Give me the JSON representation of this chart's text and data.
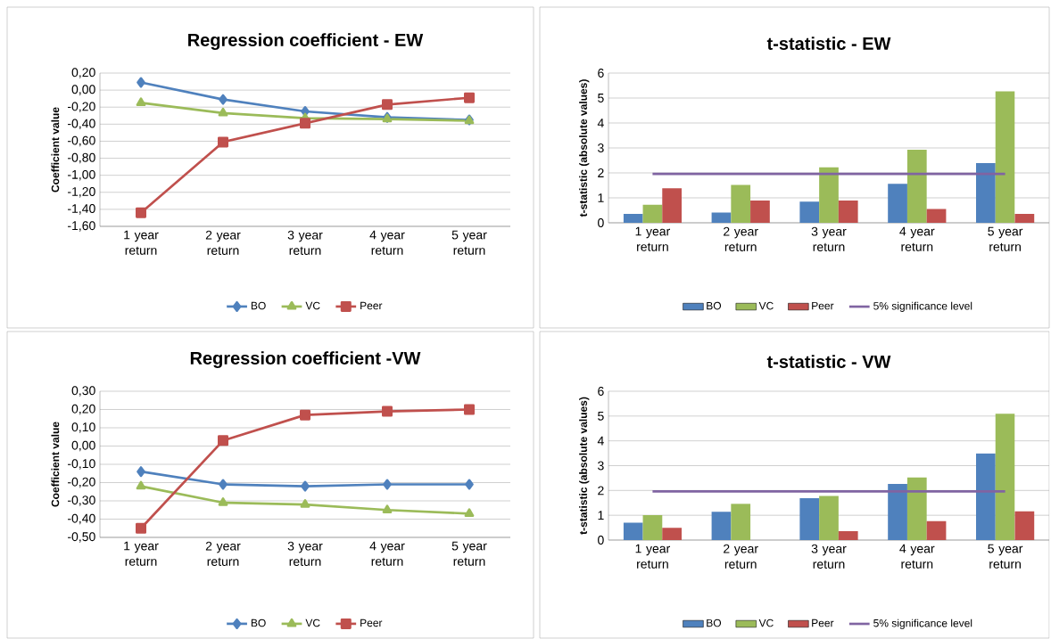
{
  "chart_data": [
    {
      "type": "line",
      "title": "Regression coefficient - EW",
      "ylabel": "Coefficient value",
      "categories": [
        "1 year return",
        "2 year return",
        "3 year return",
        "4 year return",
        "5 year return"
      ],
      "series": [
        {
          "name": "BO",
          "color": "#4f81bd",
          "marker": "diamond",
          "values": [
            0.09,
            -0.11,
            -0.25,
            -0.32,
            -0.35
          ]
        },
        {
          "name": "VC",
          "color": "#9bbb59",
          "marker": "triangle",
          "values": [
            -0.15,
            -0.27,
            -0.33,
            -0.34,
            -0.36
          ]
        },
        {
          "name": "Peer",
          "color": "#c0504d",
          "marker": "square",
          "values": [
            -1.44,
            -0.61,
            -0.39,
            -0.17,
            -0.09
          ]
        }
      ],
      "ylim": [
        -1.6,
        0.2
      ],
      "yticks": [
        {
          "value": -1.6,
          "label": "-1,60"
        },
        {
          "value": -1.4,
          "label": "-1,40"
        },
        {
          "value": -1.2,
          "label": "-1,20"
        },
        {
          "value": -1.0,
          "label": "-1,00"
        },
        {
          "value": -0.8,
          "label": "-0,80"
        },
        {
          "value": -0.6,
          "label": "-0,60"
        },
        {
          "value": -0.4,
          "label": "-0,40"
        },
        {
          "value": -0.2,
          "label": "-0,20"
        },
        {
          "value": 0,
          "label": "0,00"
        },
        {
          "value": 0.2,
          "label": "0,20"
        }
      ],
      "grid": "y",
      "legend": "bottom"
    },
    {
      "type": "bar",
      "title": "t-statistic - EW",
      "ylabel": "t-statistic (absolute values)",
      "categories": [
        "1 year return",
        "2 year return",
        "3 year return",
        "4 year return",
        "5 year return"
      ],
      "series": [
        {
          "name": "BO",
          "color": "#4f81bd",
          "values": [
            0.36,
            0.41,
            0.85,
            1.56,
            2.39
          ]
        },
        {
          "name": "VC",
          "color": "#9bbb59",
          "values": [
            0.72,
            1.52,
            2.22,
            2.93,
            5.27
          ]
        },
        {
          "name": "Peer",
          "color": "#c0504d",
          "values": [
            1.38,
            0.89,
            0.89,
            0.55,
            0.36
          ]
        },
        {
          "name": "5% significance level",
          "type": "line",
          "color": "#8064a2",
          "values": [
            1.96,
            1.96,
            1.96,
            1.96,
            1.96
          ]
        }
      ],
      "ylim": [
        0,
        6
      ],
      "yticks": [
        0,
        1,
        2,
        3,
        4,
        5,
        6
      ],
      "grid": "y",
      "legend": "bottom"
    },
    {
      "type": "line",
      "title": "Regression coefficient -VW",
      "ylabel": "Coefficient value",
      "categories": [
        "1 year return",
        "2 year return",
        "3 year return",
        "4 year return",
        "5 year return"
      ],
      "series": [
        {
          "name": "BO",
          "color": "#4f81bd",
          "marker": "diamond",
          "values": [
            -0.14,
            -0.21,
            -0.22,
            -0.21,
            -0.21
          ]
        },
        {
          "name": "VC",
          "color": "#9bbb59",
          "marker": "triangle",
          "values": [
            -0.22,
            -0.31,
            -0.32,
            -0.35,
            -0.37
          ]
        },
        {
          "name": "Peer",
          "color": "#c0504d",
          "marker": "square",
          "values": [
            -0.45,
            0.03,
            0.17,
            0.19,
            0.2
          ]
        }
      ],
      "ylim": [
        -0.5,
        0.3
      ],
      "yticks": [
        {
          "value": -0.5,
          "label": "-0,50"
        },
        {
          "value": -0.4,
          "label": "-0,40"
        },
        {
          "value": -0.3,
          "label": "-0,30"
        },
        {
          "value": -0.2,
          "label": "-0,20"
        },
        {
          "value": -0.1,
          "label": "-0,10"
        },
        {
          "value": 0,
          "label": "0,00"
        },
        {
          "value": 0.1,
          "label": "0,10"
        },
        {
          "value": 0.2,
          "label": "0,20"
        },
        {
          "value": 0.3,
          "label": "0,30"
        }
      ],
      "grid": "y",
      "legend": "bottom"
    },
    {
      "type": "bar",
      "title": "t-statistic - VW",
      "ylabel": "t-statistic (absolute values)",
      "categories": [
        "1 year return",
        "2 year return",
        "3 year return",
        "4 year return",
        "5 year return"
      ],
      "series": [
        {
          "name": "BO",
          "color": "#4f81bd",
          "values": [
            0.7,
            1.14,
            1.69,
            2.26,
            3.49
          ]
        },
        {
          "name": "VC",
          "color": "#9bbb59",
          "values": [
            1.01,
            1.46,
            1.78,
            2.52,
            5.09
          ]
        },
        {
          "name": "Peer",
          "color": "#c0504d",
          "values": [
            0.49,
            null,
            0.36,
            0.76,
            1.16
          ]
        },
        {
          "name": "5% significance level",
          "type": "line",
          "color": "#8064a2",
          "values": [
            1.96,
            1.96,
            1.96,
            1.96,
            1.96
          ]
        }
      ],
      "ylim": [
        0,
        6
      ],
      "yticks": [
        0,
        1,
        2,
        3,
        4,
        5,
        6
      ],
      "grid": "y",
      "legend": "bottom"
    }
  ]
}
